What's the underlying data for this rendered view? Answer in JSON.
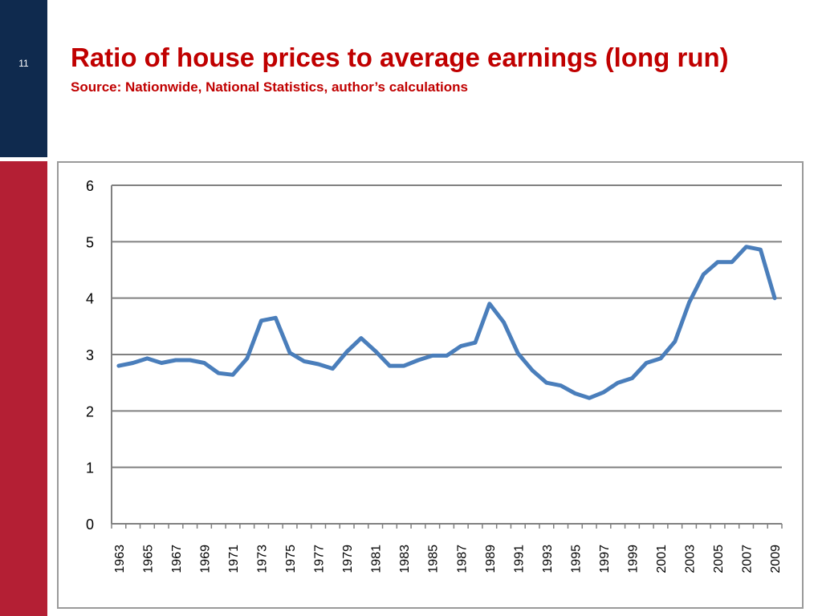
{
  "slide": {
    "number": "11",
    "title": "Ratio of house prices to average earnings (long run)",
    "subtitle": "Source: Nationwide, National Statistics, author’s calculations"
  },
  "colors": {
    "line": "#4a7ebb",
    "grid": "#808080",
    "title": "#c00000",
    "side_top": "#0f2a4e",
    "side_bottom": "#b41f34"
  },
  "chart_data": {
    "type": "line",
    "title": "",
    "xlabel": "",
    "ylabel": "",
    "ylim": [
      0,
      6
    ],
    "yticks": [
      "0",
      "1",
      "2",
      "3",
      "4",
      "5",
      "6"
    ],
    "grid": true,
    "x": [
      "1963",
      "1964",
      "1965",
      "1966",
      "1967",
      "1968",
      "1969",
      "1970",
      "1971",
      "1972",
      "1973",
      "1974",
      "1975",
      "1976",
      "1977",
      "1978",
      "1979",
      "1980",
      "1981",
      "1982",
      "1983",
      "1984",
      "1985",
      "1986",
      "1987",
      "1988",
      "1989",
      "1990",
      "1991",
      "1992",
      "1993",
      "1994",
      "1995",
      "1996",
      "1997",
      "1998",
      "1999",
      "2000",
      "2001",
      "2002",
      "2003",
      "2004",
      "2005",
      "2006",
      "2007",
      "2008",
      "2009"
    ],
    "xtick_labels": [
      "1963",
      "1965",
      "1967",
      "1969",
      "1971",
      "1973",
      "1975",
      "1977",
      "1979",
      "1981",
      "1983",
      "1985",
      "1987",
      "1989",
      "1991",
      "1993",
      "1995",
      "1997",
      "1999",
      "2001",
      "2003",
      "2005",
      "2007",
      "2009"
    ],
    "series": [
      {
        "values": [
          2.8,
          2.85,
          2.93,
          2.85,
          2.9,
          2.9,
          2.85,
          2.67,
          2.64,
          2.93,
          3.6,
          3.65,
          3.03,
          2.88,
          2.83,
          2.75,
          3.05,
          3.29,
          3.06,
          2.8,
          2.8,
          2.9,
          2.98,
          2.98,
          3.15,
          3.21,
          3.9,
          3.57,
          3.02,
          2.72,
          2.5,
          2.45,
          2.31,
          2.23,
          2.33,
          2.5,
          2.58,
          2.85,
          2.93,
          3.23,
          3.92,
          4.42,
          4.64,
          4.64,
          4.91,
          4.86,
          4.0
        ]
      }
    ]
  }
}
